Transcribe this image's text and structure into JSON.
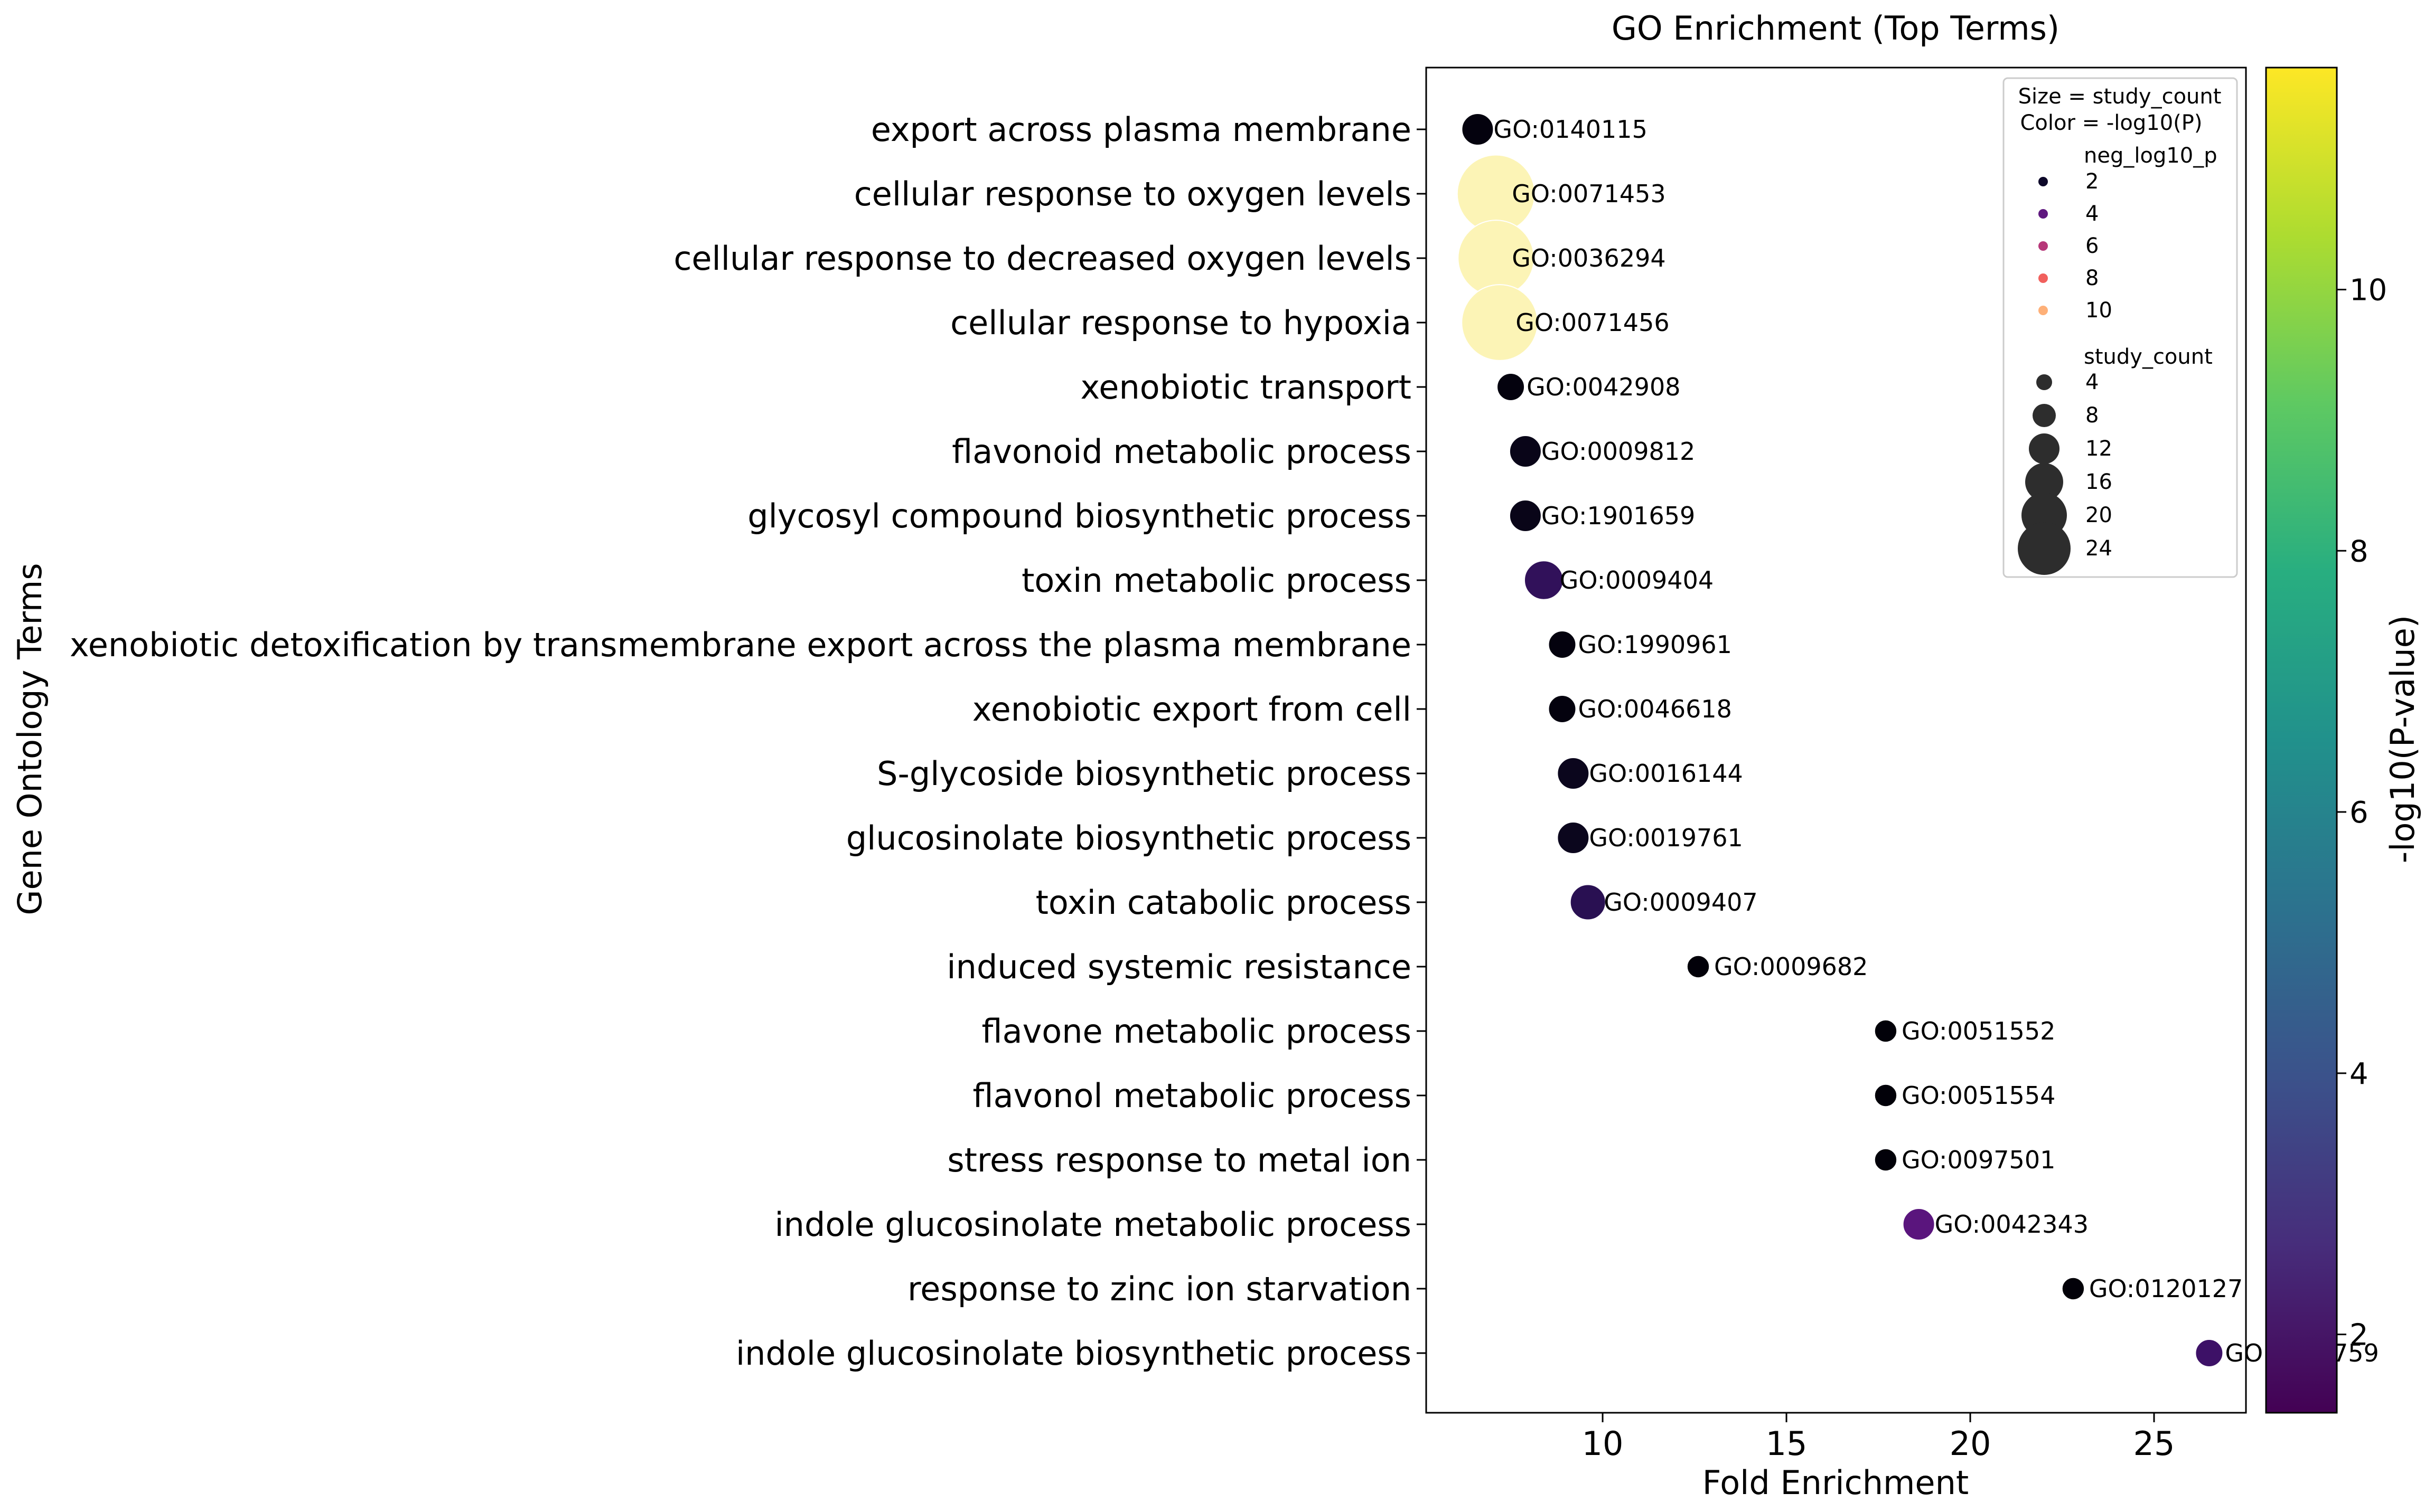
{
  "chart_data": {
    "type": "scatter",
    "title": "GO Enrichment (Top Terms)",
    "xlabel": "Fold Enrichment",
    "ylabel": "Gene Ontology Terms",
    "xlim": [
      5.2,
      27.5
    ],
    "x_ticks": [
      10,
      15,
      20,
      25
    ],
    "grid": false,
    "points": [
      {
        "term": "export across plasma membrane",
        "go": "GO:0140115",
        "fold": 6.6,
        "neg_log10_p": 1.6,
        "study_count": 4
      },
      {
        "term": "cellular response to oxygen levels",
        "go": "GO:0071453",
        "fold": 7.1,
        "neg_log10_p": 11.5,
        "study_count": 24
      },
      {
        "term": "cellular response to decreased oxygen levels",
        "go": "GO:0036294",
        "fold": 7.1,
        "neg_log10_p": 11.5,
        "study_count": 23
      },
      {
        "term": "cellular response to hypoxia",
        "go": "GO:0071456",
        "fold": 7.2,
        "neg_log10_p": 11.5,
        "study_count": 23
      },
      {
        "term": "xenobiotic transport",
        "go": "GO:0042908",
        "fold": 7.5,
        "neg_log10_p": 1.6,
        "study_count": 3
      },
      {
        "term": "flavonoid metabolic process",
        "go": "GO:0009812",
        "fold": 7.9,
        "neg_log10_p": 1.8,
        "study_count": 4
      },
      {
        "term": "glycosyl compound biosynthetic process",
        "go": "GO:1901659",
        "fold": 7.9,
        "neg_log10_p": 1.8,
        "study_count": 4
      },
      {
        "term": "toxin metabolic process",
        "go": "GO:0009404",
        "fold": 8.4,
        "neg_log10_p": 3.2,
        "study_count": 6
      },
      {
        "term": "xenobiotic detoxification by transmembrane export across the plasma membrane",
        "go": "GO:1990961",
        "fold": 8.9,
        "neg_log10_p": 1.6,
        "study_count": 3
      },
      {
        "term": "xenobiotic export from cell",
        "go": "GO:0046618",
        "fold": 8.9,
        "neg_log10_p": 1.6,
        "study_count": 3
      },
      {
        "term": "S-glycoside biosynthetic process",
        "go": "GO:0016144",
        "fold": 9.2,
        "neg_log10_p": 1.9,
        "study_count": 4
      },
      {
        "term": "glucosinolate biosynthetic process",
        "go": "GO:0019761",
        "fold": 9.2,
        "neg_log10_p": 1.9,
        "study_count": 4
      },
      {
        "term": "toxin catabolic process",
        "go": "GO:0009407",
        "fold": 9.6,
        "neg_log10_p": 3.0,
        "study_count": 5
      },
      {
        "term": "induced systemic resistance",
        "go": "GO:0009682",
        "fold": 12.6,
        "neg_log10_p": 1.5,
        "study_count": 2
      },
      {
        "term": "flavone metabolic process",
        "go": "GO:0051552",
        "fold": 17.7,
        "neg_log10_p": 1.5,
        "study_count": 2
      },
      {
        "term": "flavonol metabolic process",
        "go": "GO:0051554",
        "fold": 17.7,
        "neg_log10_p": 1.5,
        "study_count": 2
      },
      {
        "term": "stress response to metal ion",
        "go": "GO:0097501",
        "fold": 17.7,
        "neg_log10_p": 1.5,
        "study_count": 2
      },
      {
        "term": "indole glucosinolate metabolic process",
        "go": "GO:0042343",
        "fold": 18.6,
        "neg_log10_p": 4.2,
        "study_count": 4
      },
      {
        "term": "response to zinc ion starvation",
        "go": "GO:0120127",
        "fold": 22.8,
        "neg_log10_p": 1.5,
        "study_count": 2
      },
      {
        "term": "indole glucosinolate biosynthetic process",
        "go": "GO:0009759",
        "fold": 26.5,
        "neg_log10_p": 3.5,
        "study_count": 3
      }
    ],
    "colorbar": {
      "label": "-log10(P-value)",
      "range": [
        1.4,
        11.7
      ],
      "ticks": [
        2,
        4,
        6,
        8,
        10
      ],
      "colormap": "viridis"
    },
    "legend": {
      "placement": "top-right",
      "title_lines": [
        "Size = study_count",
        "Color = -log10(P)"
      ],
      "hue_title": "neg_log10_p",
      "hue_entries": [
        {
          "label": "2",
          "color": "#0d0829"
        },
        {
          "label": "4",
          "color": "#5f187f"
        },
        {
          "label": "6",
          "color": "#b73779"
        },
        {
          "label": "8",
          "color": "#f1605d"
        },
        {
          "label": "10",
          "color": "#feb078"
        }
      ],
      "size_title": "study_count",
      "size_entries": [
        "4",
        "8",
        "12",
        "16",
        "20",
        "24"
      ]
    },
    "point_cmap_stops": [
      "#000004",
      "#1c1044",
      "#51127c",
      "#832681",
      "#b73779",
      "#e75263",
      "#fc8961",
      "#fec287",
      "#fcfdbf"
    ]
  }
}
